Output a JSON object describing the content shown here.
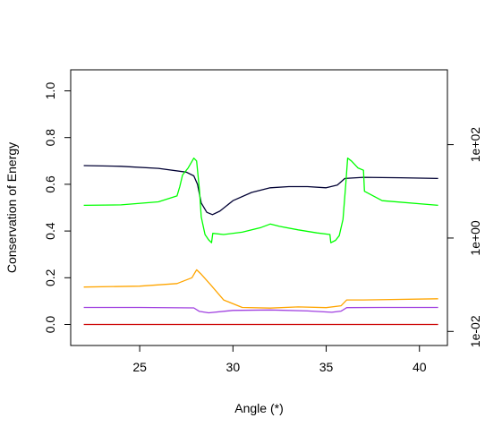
{
  "chart_data": {
    "type": "line",
    "title": "",
    "xlabel": "Angle (*)",
    "ylabel": "Conservation of Energy",
    "xlim": [
      21.3,
      41.5
    ],
    "ylim": [
      -0.09,
      1.09
    ],
    "x_ticks": [
      25,
      30,
      35,
      40
    ],
    "y_ticks": [
      0.0,
      0.2,
      0.4,
      0.6,
      0.8,
      1.0
    ],
    "y_tick_labels": [
      "0.0",
      "0.2",
      "0.4",
      "0.6",
      "0.8",
      "1.0"
    ],
    "right_axis": {
      "scale": "log",
      "tick_values": [
        0.01,
        1,
        100
      ],
      "tick_labels": [
        "1e-02",
        "1e+00",
        "1e+02"
      ],
      "range": [
        0.005,
        4000
      ]
    },
    "grid": false,
    "legend": "none",
    "series": [
      {
        "color": "#000033",
        "axis": "left",
        "points": [
          [
            22,
            0.68
          ],
          [
            24,
            0.677
          ],
          [
            26,
            0.668
          ],
          [
            27.5,
            0.652
          ],
          [
            27.9,
            0.636
          ],
          [
            28.1,
            0.6
          ],
          [
            28.3,
            0.52
          ],
          [
            28.6,
            0.48
          ],
          [
            28.9,
            0.47
          ],
          [
            29.3,
            0.485
          ],
          [
            30,
            0.53
          ],
          [
            31,
            0.565
          ],
          [
            32,
            0.585
          ],
          [
            33,
            0.59
          ],
          [
            34,
            0.59
          ],
          [
            35,
            0.585
          ],
          [
            35.6,
            0.597
          ],
          [
            36,
            0.625
          ],
          [
            37,
            0.63
          ],
          [
            39,
            0.628
          ],
          [
            41,
            0.625
          ]
        ]
      },
      {
        "color": "#00ff00",
        "axis": "left",
        "points": [
          [
            22,
            0.51
          ],
          [
            24,
            0.512
          ],
          [
            26,
            0.525
          ],
          [
            27,
            0.55
          ],
          [
            27.15,
            0.59
          ],
          [
            27.3,
            0.64
          ],
          [
            27.6,
            0.67
          ],
          [
            27.9,
            0.712
          ],
          [
            28.05,
            0.7
          ],
          [
            28.2,
            0.58
          ],
          [
            28.3,
            0.46
          ],
          [
            28.5,
            0.385
          ],
          [
            28.7,
            0.362
          ],
          [
            28.85,
            0.35
          ],
          [
            28.92,
            0.39
          ],
          [
            29.5,
            0.385
          ],
          [
            30.5,
            0.395
          ],
          [
            31.5,
            0.415
          ],
          [
            32,
            0.43
          ],
          [
            32.5,
            0.42
          ],
          [
            33.5,
            0.405
          ],
          [
            34.5,
            0.392
          ],
          [
            35.2,
            0.385
          ],
          [
            35.25,
            0.35
          ],
          [
            35.5,
            0.36
          ],
          [
            35.7,
            0.38
          ],
          [
            35.9,
            0.45
          ],
          [
            36.05,
            0.6
          ],
          [
            36.15,
            0.712
          ],
          [
            36.35,
            0.7
          ],
          [
            36.7,
            0.67
          ],
          [
            37,
            0.66
          ],
          [
            37.05,
            0.57
          ],
          [
            38,
            0.53
          ],
          [
            41,
            0.51
          ]
        ]
      },
      {
        "color": "#ffa500",
        "axis": "left",
        "points": [
          [
            22,
            0.16
          ],
          [
            25,
            0.164
          ],
          [
            27,
            0.175
          ],
          [
            27.8,
            0.2
          ],
          [
            28.05,
            0.234
          ],
          [
            28.3,
            0.215
          ],
          [
            28.8,
            0.17
          ],
          [
            29.5,
            0.105
          ],
          [
            30.5,
            0.073
          ],
          [
            32,
            0.07
          ],
          [
            33.5,
            0.075
          ],
          [
            35,
            0.072
          ],
          [
            35.8,
            0.08
          ],
          [
            36.1,
            0.105
          ],
          [
            37,
            0.105
          ],
          [
            41,
            0.11
          ]
        ]
      },
      {
        "color": "#a040e0",
        "axis": "left",
        "points": [
          [
            22,
            0.073
          ],
          [
            25,
            0.073
          ],
          [
            27.9,
            0.071
          ],
          [
            28.2,
            0.056
          ],
          [
            28.7,
            0.05
          ],
          [
            30,
            0.06
          ],
          [
            32,
            0.062
          ],
          [
            34,
            0.058
          ],
          [
            35.3,
            0.052
          ],
          [
            35.8,
            0.057
          ],
          [
            36.1,
            0.072
          ],
          [
            38,
            0.073
          ],
          [
            41,
            0.073
          ]
        ]
      },
      {
        "color": "#cc0000",
        "axis": "left",
        "points": [
          [
            22,
            0.0
          ],
          [
            41,
            0.0
          ]
        ]
      }
    ]
  }
}
